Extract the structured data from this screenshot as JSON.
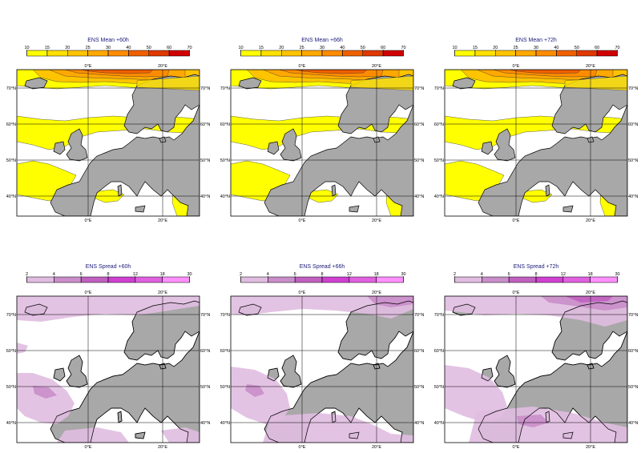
{
  "rows": [
    {
      "id": "mean",
      "colorbar": {
        "ticks": [
          "10",
          "15",
          "20",
          "25",
          "30",
          "40",
          "50",
          "60",
          "70"
        ],
        "colors": [
          "#ffff00",
          "#ffe000",
          "#ffc400",
          "#ffa800",
          "#ff8c00",
          "#f06000",
          "#e03800",
          "#d00000"
        ]
      },
      "panels": [
        {
          "title": "ENS Mean +60h"
        },
        {
          "title": "ENS Mean +66h"
        },
        {
          "title": "ENS Mean +72h"
        }
      ]
    },
    {
      "id": "spread",
      "colorbar": {
        "ticks": [
          "2",
          "4",
          "6",
          "8",
          "12",
          "18",
          "30"
        ],
        "colors": [
          "#e0bce0",
          "#c98ec9",
          "#c060c0",
          "#d040d0",
          "#e060e0",
          "#ff90ff"
        ]
      },
      "panels": [
        {
          "title": "ENS Spread +60h"
        },
        {
          "title": "ENS Spread +66h"
        },
        {
          "title": "ENS Spread +72h"
        }
      ]
    }
  ],
  "axes": {
    "lon_labels": [
      "0°E",
      "20°E"
    ],
    "lat_labels": [
      "70°N",
      "60°N",
      "50°N",
      "40°N"
    ]
  },
  "map_style": {
    "land_color": "#a8a8a8",
    "sea_color": "#ffffff",
    "coast_color": "#000000"
  }
}
